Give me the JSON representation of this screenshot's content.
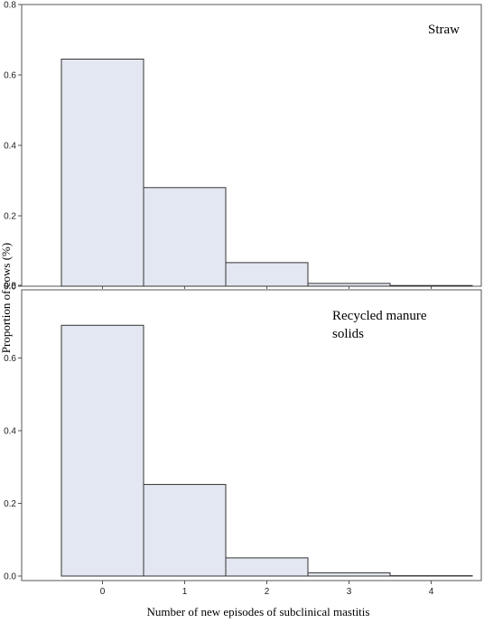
{
  "chart_data": {
    "type": "bar",
    "layout": "two stacked panels sharing x axis",
    "categories": [
      "0",
      "1",
      "2",
      "3",
      "4"
    ],
    "x_ticks": [
      "0",
      "1",
      "2",
      "3",
      "4"
    ],
    "y_ticks": [
      "0.0",
      "0.2",
      "0.4",
      "0.6",
      "0.8"
    ],
    "ylim": [
      0,
      0.8
    ],
    "xlabel": "Number of new episodes of subclinical mastitis",
    "ylabel": "Proportion of cows (%)",
    "panels": [
      {
        "label": "Straw",
        "values": [
          0.645,
          0.28,
          0.067,
          0.008,
          0.002
        ]
      },
      {
        "label_lines": [
          "Recycled manure",
          "solids"
        ],
        "values": [
          0.69,
          0.252,
          0.05,
          0.009,
          0.001
        ]
      }
    ]
  }
}
